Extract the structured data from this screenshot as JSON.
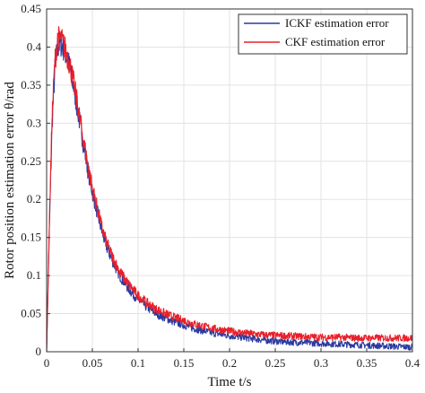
{
  "chart_data": {
    "type": "line",
    "xlabel": "Time t/s",
    "ylabel": "Rotor position estimation error θ/rad",
    "xlim": [
      0,
      0.4
    ],
    "ylim": [
      0,
      0.45
    ],
    "x_ticks": [
      "0",
      "0.05",
      "0.1",
      "0.15",
      "0.2",
      "0.25",
      "0.3",
      "0.35",
      "0.4"
    ],
    "y_ticks": [
      "0",
      "0.05",
      "0.1",
      "0.15",
      "0.2",
      "0.25",
      "0.3",
      "0.35",
      "0.4",
      "0.45"
    ],
    "grid": true,
    "legend_position": "top-right",
    "series": [
      {
        "name": "ICKF estimation error",
        "color": "#2b3a9e",
        "x": [
          0,
          0.003,
          0.006,
          0.009,
          0.012,
          0.015,
          0.018,
          0.021,
          0.025,
          0.03,
          0.035,
          0.04,
          0.045,
          0.05,
          0.055,
          0.06,
          0.065,
          0.07,
          0.075,
          0.08,
          0.09,
          0.1,
          0.11,
          0.12,
          0.13,
          0.14,
          0.15,
          0.16,
          0.17,
          0.18,
          0.19,
          0.2,
          0.22,
          0.24,
          0.26,
          0.28,
          0.3,
          0.32,
          0.34,
          0.36,
          0.38,
          0.4
        ],
        "y": [
          0,
          0.16,
          0.3,
          0.37,
          0.4,
          0.405,
          0.4,
          0.39,
          0.375,
          0.345,
          0.31,
          0.275,
          0.24,
          0.21,
          0.185,
          0.16,
          0.14,
          0.125,
          0.112,
          0.1,
          0.082,
          0.068,
          0.058,
          0.05,
          0.044,
          0.039,
          0.035,
          0.031,
          0.028,
          0.025,
          0.023,
          0.021,
          0.018,
          0.015,
          0.013,
          0.012,
          0.011,
          0.01,
          0.009,
          0.008,
          0.007,
          0.006
        ]
      },
      {
        "name": "CKF estimation error",
        "color": "#e8202a",
        "x": [
          0,
          0.003,
          0.006,
          0.009,
          0.012,
          0.015,
          0.018,
          0.021,
          0.025,
          0.03,
          0.035,
          0.04,
          0.045,
          0.05,
          0.055,
          0.06,
          0.065,
          0.07,
          0.075,
          0.08,
          0.09,
          0.1,
          0.11,
          0.12,
          0.13,
          0.14,
          0.15,
          0.16,
          0.17,
          0.18,
          0.19,
          0.2,
          0.22,
          0.24,
          0.26,
          0.28,
          0.3,
          0.32,
          0.34,
          0.36,
          0.38,
          0.4
        ],
        "y": [
          0,
          0.17,
          0.31,
          0.38,
          0.41,
          0.41,
          0.405,
          0.395,
          0.38,
          0.35,
          0.315,
          0.28,
          0.245,
          0.215,
          0.19,
          0.165,
          0.145,
          0.13,
          0.117,
          0.105,
          0.088,
          0.074,
          0.064,
          0.056,
          0.05,
          0.045,
          0.041,
          0.037,
          0.034,
          0.031,
          0.029,
          0.027,
          0.024,
          0.022,
          0.021,
          0.02,
          0.019,
          0.019,
          0.018,
          0.018,
          0.018,
          0.018
        ]
      }
    ]
  }
}
